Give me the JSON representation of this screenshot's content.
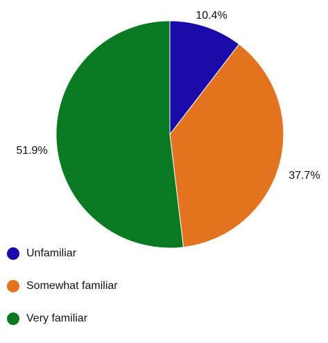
{
  "chart_data": {
    "type": "pie",
    "categories": [
      "Unfamiliar",
      "Somewhat familiar",
      "Very familiar"
    ],
    "values": [
      10.4,
      37.7,
      51.9
    ],
    "labels": [
      "10.4%",
      "37.7%",
      "51.9%"
    ],
    "colors": [
      "#1a0aaa",
      "#e3731f",
      "#0a7a22"
    ],
    "start_angle": "12 o'clock",
    "direction": "clockwise",
    "legend_position": "bottom-left"
  }
}
